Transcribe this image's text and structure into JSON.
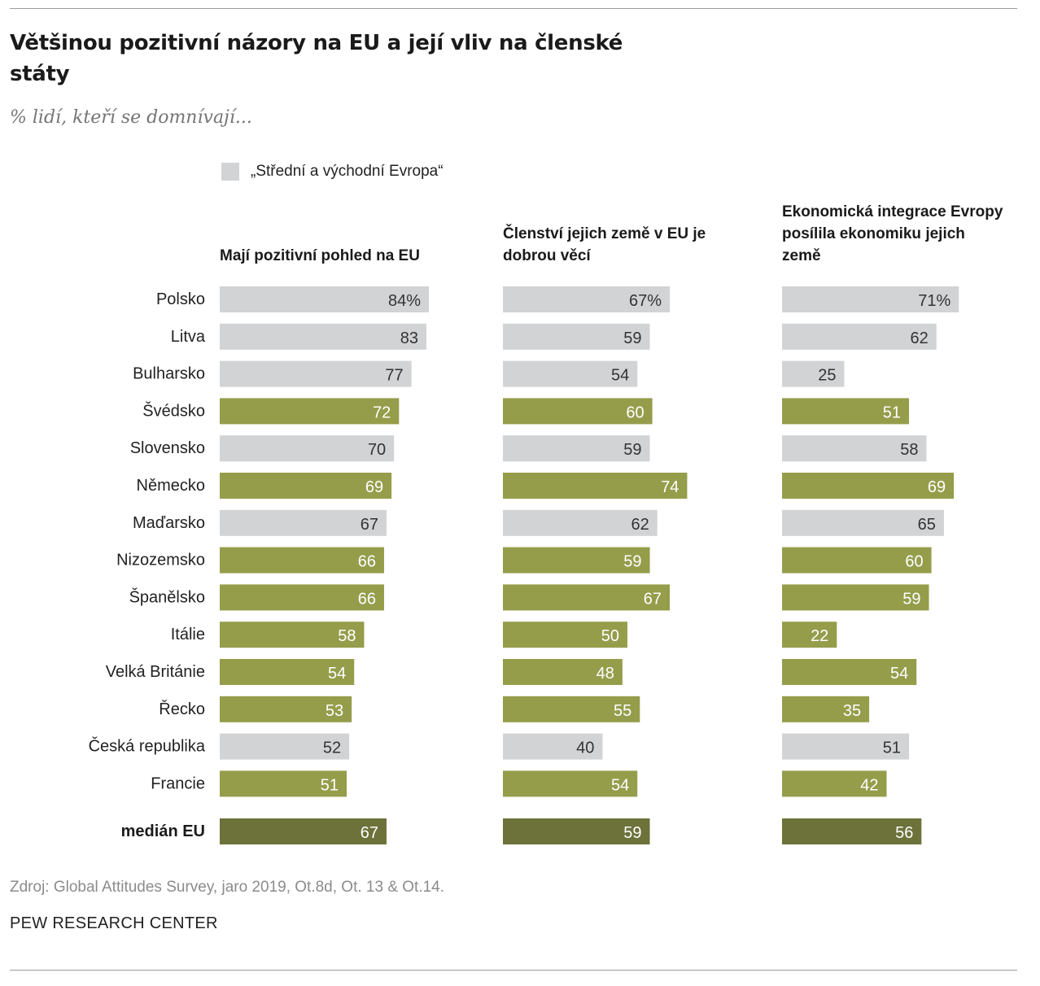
{
  "title": "Většinou pozitivní názory na EU a její vliv na členské státy",
  "subtitle": "% lidí, kteří se domnívají...",
  "legend": {
    "label": "„Střední a východní Evropa“",
    "color": "#d2d3d5"
  },
  "colors": {
    "central_eastern": "#d2d3d5",
    "other": "#959d4b",
    "median": "#6d723a"
  },
  "source": "Zdroj: Global Attitudes Survey, jaro 2019,  Ot.8d, Ot. 13 & Ot.14.",
  "footer": "PEW RESEARCH CENTER",
  "chart_data": {
    "type": "bar",
    "categories": [
      "Polsko",
      "Litva",
      "Bulharsko",
      "Švédsko",
      "Slovensko",
      "Německo",
      "Maďarsko",
      "Nizozemsko",
      "Španělsko",
      "Itálie",
      "Velká Británie",
      "Řecko",
      "Česká republika",
      "Francie"
    ],
    "central_eastern": [
      true,
      true,
      true,
      false,
      true,
      false,
      true,
      false,
      false,
      false,
      false,
      false,
      true,
      false
    ],
    "median_label": "medián EU",
    "series": [
      {
        "name": "Mají pozitivní pohled na EU",
        "values": [
          84,
          83,
          77,
          72,
          70,
          69,
          67,
          66,
          66,
          58,
          54,
          53,
          52,
          51
        ],
        "median": 67
      },
      {
        "name": "Členství jejich země v EU je dobrou věcí",
        "values": [
          67,
          59,
          54,
          60,
          59,
          74,
          62,
          59,
          67,
          50,
          48,
          55,
          40,
          54
        ],
        "median": 59
      },
      {
        "name": "Ekonomická integrace Evropy posílila ekonomiku jejich země",
        "values": [
          71,
          62,
          25,
          51,
          58,
          69,
          65,
          60,
          59,
          22,
          54,
          35,
          51,
          42
        ],
        "median": 56
      }
    ],
    "percent_suffix_first_row": "%",
    "xlim": [
      0,
      100
    ]
  }
}
